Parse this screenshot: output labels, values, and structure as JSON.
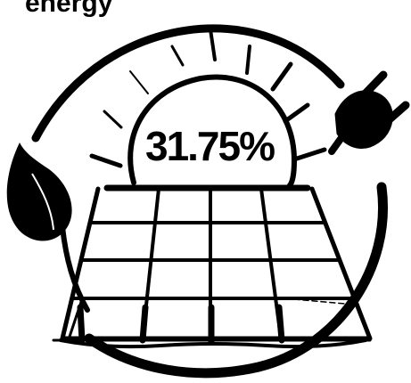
{
  "header": {
    "title": "energy"
  },
  "infographic": {
    "value_label": "31.75%",
    "icons": [
      "sun-rays-icon",
      "solar-panel-icon",
      "leaf-icon",
      "plug-icon",
      "cycle-arrow-icon"
    ],
    "colors": {
      "ink": "#000000",
      "background": "#ffffff"
    }
  }
}
